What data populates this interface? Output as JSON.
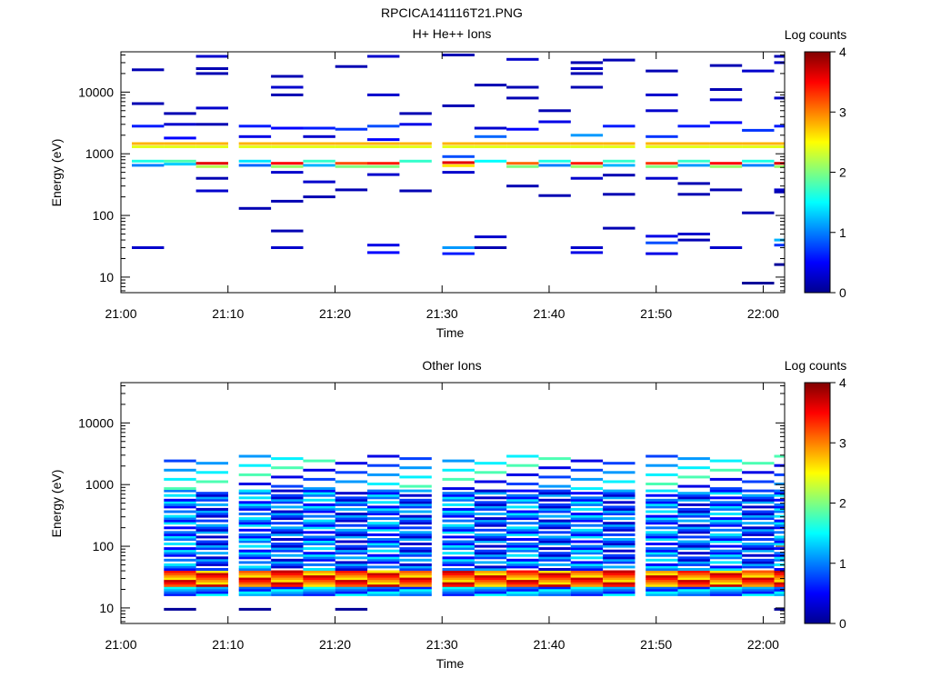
{
  "figure": {
    "title": "RPCICA141116T21.PNG"
  },
  "colors": {
    "background": "#ffffff",
    "axis": "#000000"
  },
  "chart_data": [
    {
      "type": "heatmap",
      "title": "H+ He++ Ions",
      "xlabel": "Time",
      "ylabel": "Energy (eV)",
      "y_scale": "log",
      "ylim": [
        5.6,
        45000
      ],
      "xlim": [
        "21:00",
        "22:02"
      ],
      "x_ticks": [
        "21:00",
        "21:10",
        "21:20",
        "21:30",
        "21:40",
        "21:50",
        "22:00"
      ],
      "y_ticks": [
        "10",
        "100",
        "1000",
        "10000"
      ],
      "colorbar": {
        "label": "Log counts",
        "range": [
          0,
          4
        ],
        "ticks": [
          "0",
          "1",
          "2",
          "3",
          "4"
        ],
        "colormap": "jet"
      },
      "time_bins": [
        "21:00",
        "21:03",
        "21:06",
        "21:10",
        "21:13",
        "21:16",
        "21:19",
        "21:22",
        "21:25",
        "21:29",
        "21:32",
        "21:35",
        "21:38",
        "21:41",
        "21:44",
        "21:48",
        "21:51",
        "21:54",
        "21:57",
        "22:00"
      ],
      "cells": [
        [
          1,
          1460,
          2.8
        ],
        [
          1,
          1300,
          2.4
        ],
        [
          1,
          760,
          1.8
        ],
        [
          1,
          680,
          1.3
        ],
        [
          1,
          1800,
          0.5
        ],
        [
          1,
          3000,
          0.3
        ],
        [
          1,
          4500,
          0.2
        ],
        [
          2,
          1460,
          2.8
        ],
        [
          2,
          1300,
          2.4
        ],
        [
          2,
          700,
          3.6
        ],
        [
          2,
          620,
          2.2
        ],
        [
          2,
          38000,
          0.3
        ],
        [
          2,
          24000,
          0.2
        ],
        [
          2,
          20000,
          0.2
        ],
        [
          2,
          5500,
          0.3
        ],
        [
          2,
          3000,
          0.2
        ],
        [
          2,
          400,
          0.2
        ],
        [
          2,
          250,
          0.3
        ],
        [
          3,
          1460,
          2.8
        ],
        [
          3,
          1300,
          2.4
        ],
        [
          3,
          760,
          1.4
        ],
        [
          3,
          650,
          0.9
        ],
        [
          3,
          2800,
          0.6
        ],
        [
          3,
          1900,
          0.4
        ],
        [
          3,
          130,
          0.2
        ],
        [
          4,
          1460,
          2.8
        ],
        [
          4,
          1300,
          2.4
        ],
        [
          4,
          700,
          3.5
        ],
        [
          4,
          620,
          2.1
        ],
        [
          4,
          18000,
          0.2
        ],
        [
          4,
          12000,
          0.3
        ],
        [
          4,
          9000,
          0.2
        ],
        [
          4,
          2600,
          0.5
        ],
        [
          4,
          500,
          0.3
        ],
        [
          4,
          170,
          0.2
        ],
        [
          4,
          56,
          0.2
        ],
        [
          4,
          30,
          0.3
        ],
        [
          5,
          1460,
          2.8
        ],
        [
          5,
          1300,
          2.4
        ],
        [
          5,
          760,
          1.7
        ],
        [
          5,
          650,
          1.2
        ],
        [
          5,
          2600,
          0.6
        ],
        [
          5,
          1900,
          0.3
        ],
        [
          5,
          350,
          0.3
        ],
        [
          5,
          200,
          0.2
        ],
        [
          6,
          1460,
          2.8
        ],
        [
          6,
          1300,
          2.4
        ],
        [
          6,
          700,
          3.2
        ],
        [
          6,
          620,
          2.0
        ],
        [
          6,
          26000,
          0.2
        ],
        [
          6,
          2500,
          0.7
        ],
        [
          6,
          260,
          0.2
        ],
        [
          7,
          1460,
          2.8
        ],
        [
          7,
          1300,
          2.4
        ],
        [
          7,
          700,
          3.4
        ],
        [
          7,
          620,
          2.0
        ],
        [
          7,
          38000,
          0.3
        ],
        [
          7,
          9000,
          0.3
        ],
        [
          7,
          2800,
          0.8
        ],
        [
          7,
          1700,
          0.5
        ],
        [
          7,
          460,
          0.3
        ],
        [
          7,
          33,
          0.4
        ],
        [
          7,
          25,
          0.5
        ],
        [
          8,
          1460,
          2.8
        ],
        [
          8,
          1300,
          2.4
        ],
        [
          8,
          760,
          1.7
        ],
        [
          8,
          3000,
          0.4
        ],
        [
          8,
          4500,
          0.2
        ],
        [
          8,
          250,
          0.2
        ],
        [
          9,
          1460,
          2.8
        ],
        [
          9,
          1300,
          2.4
        ],
        [
          9,
          720,
          3.6
        ],
        [
          9,
          640,
          2.6
        ],
        [
          9,
          900,
          0.8
        ],
        [
          9,
          40000,
          0.2
        ],
        [
          9,
          6000,
          0.2
        ],
        [
          9,
          500,
          0.3
        ],
        [
          9,
          30,
          1.1
        ],
        [
          9,
          24,
          0.6
        ],
        [
          10,
          1460,
          2.8
        ],
        [
          10,
          1300,
          2.4
        ],
        [
          10,
          760,
          1.5
        ],
        [
          10,
          1900,
          0.9
        ],
        [
          10,
          13000,
          0.2
        ],
        [
          10,
          2600,
          0.3
        ],
        [
          10,
          45,
          0.3
        ],
        [
          10,
          30,
          0.2
        ],
        [
          11,
          1460,
          2.8
        ],
        [
          11,
          1300,
          2.4
        ],
        [
          11,
          700,
          3.1
        ],
        [
          11,
          620,
          2.0
        ],
        [
          11,
          34000,
          0.3
        ],
        [
          11,
          12000,
          0.2
        ],
        [
          11,
          8000,
          0.2
        ],
        [
          11,
          2500,
          0.5
        ],
        [
          11,
          300,
          0.2
        ],
        [
          12,
          1460,
          2.8
        ],
        [
          12,
          1300,
          2.4
        ],
        [
          12,
          760,
          1.6
        ],
        [
          12,
          650,
          1.0
        ],
        [
          12,
          3300,
          0.4
        ],
        [
          12,
          5000,
          0.2
        ],
        [
          12,
          210,
          0.2
        ],
        [
          13,
          1460,
          2.8
        ],
        [
          13,
          1300,
          2.4
        ],
        [
          13,
          700,
          3.4
        ],
        [
          13,
          620,
          2.1
        ],
        [
          13,
          30000,
          0.2
        ],
        [
          13,
          24000,
          0.3
        ],
        [
          13,
          20000,
          0.2
        ],
        [
          13,
          12000,
          0.2
        ],
        [
          13,
          2000,
          1.1
        ],
        [
          13,
          400,
          0.3
        ],
        [
          13,
          30,
          0.3
        ],
        [
          13,
          25,
          0.4
        ],
        [
          14,
          1460,
          2.8
        ],
        [
          14,
          1300,
          2.4
        ],
        [
          14,
          760,
          1.7
        ],
        [
          14,
          650,
          1.2
        ],
        [
          14,
          33000,
          0.2
        ],
        [
          14,
          2800,
          0.6
        ],
        [
          14,
          450,
          0.2
        ],
        [
          14,
          220,
          0.2
        ],
        [
          14,
          62,
          0.2
        ],
        [
          15,
          1460,
          2.8
        ],
        [
          15,
          1300,
          2.4
        ],
        [
          15,
          700,
          3.3
        ],
        [
          15,
          620,
          2.0
        ],
        [
          15,
          22000,
          0.2
        ],
        [
          15,
          9000,
          0.3
        ],
        [
          15,
          5000,
          0.3
        ],
        [
          15,
          1900,
          0.7
        ],
        [
          15,
          400,
          0.3
        ],
        [
          15,
          46,
          0.4
        ],
        [
          15,
          36,
          0.8
        ],
        [
          15,
          24,
          0.4
        ],
        [
          16,
          1460,
          2.8
        ],
        [
          16,
          1300,
          2.4
        ],
        [
          16,
          760,
          1.7
        ],
        [
          16,
          650,
          1.1
        ],
        [
          16,
          2800,
          0.6
        ],
        [
          16,
          330,
          0.2
        ],
        [
          16,
          220,
          0.2
        ],
        [
          16,
          50,
          0.3
        ],
        [
          16,
          40,
          0.2
        ],
        [
          17,
          1460,
          2.8
        ],
        [
          17,
          1300,
          2.4
        ],
        [
          17,
          700,
          3.5
        ],
        [
          17,
          620,
          2.1
        ],
        [
          17,
          27000,
          0.2
        ],
        [
          17,
          11000,
          0.2
        ],
        [
          17,
          7500,
          0.3
        ],
        [
          17,
          3200,
          0.5
        ],
        [
          17,
          260,
          0.2
        ],
        [
          17,
          30,
          0.3
        ],
        [
          18,
          1460,
          2.8
        ],
        [
          18,
          1300,
          2.4
        ],
        [
          18,
          760,
          1.6
        ],
        [
          18,
          650,
          1.0
        ],
        [
          18,
          22000,
          0.3
        ],
        [
          18,
          2400,
          0.7
        ],
        [
          18,
          110,
          0.2
        ],
        [
          18,
          8,
          0.1
        ],
        [
          19,
          1460,
          2.8
        ],
        [
          19,
          1300,
          2.4
        ],
        [
          19,
          700,
          3.6
        ],
        [
          19,
          620,
          2.1
        ],
        [
          19,
          38000,
          0.2
        ],
        [
          19,
          30000,
          0.3
        ],
        [
          19,
          8000,
          0.3
        ],
        [
          19,
          2800,
          0.6
        ],
        [
          19,
          260,
          0.3
        ],
        [
          19,
          240,
          0.2
        ],
        [
          19,
          40,
          1.2
        ],
        [
          19,
          33,
          0.7
        ],
        [
          19,
          16,
          0.1
        ],
        [
          20,
          1460,
          2.8
        ],
        [
          20,
          1300,
          2.4
        ],
        [
          20,
          760,
          1.6
        ],
        [
          20,
          650,
          1.0
        ],
        [
          20,
          23000,
          0.2
        ],
        [
          20,
          6500,
          0.2
        ],
        [
          20,
          2800,
          0.6
        ],
        [
          20,
          30,
          0.3
        ]
      ]
    },
    {
      "type": "heatmap",
      "title": "Other Ions",
      "xlabel": "Time",
      "ylabel": "Energy (eV)",
      "y_scale": "log",
      "ylim": [
        5.6,
        45000
      ],
      "xlim": [
        "21:00",
        "22:02"
      ],
      "x_ticks": [
        "21:00",
        "21:10",
        "21:20",
        "21:30",
        "21:40",
        "21:50",
        "22:00"
      ],
      "y_ticks": [
        "10",
        "100",
        "1000",
        "10000"
      ],
      "colorbar": {
        "label": "Log counts",
        "range": [
          0,
          4
        ],
        "ticks": [
          "0",
          "1",
          "2",
          "3",
          "4"
        ],
        "colormap": "jet"
      },
      "profile_description": "bands between ~15 eV and ~3000 eV",
      "time_bins": [
        "21:00",
        "21:03",
        "21:06",
        "21:10",
        "21:13",
        "21:16",
        "21:19",
        "21:22",
        "21:25",
        "21:29",
        "21:32",
        "21:35",
        "21:38",
        "21:41",
        "21:44",
        "21:48",
        "21:51",
        "21:54",
        "21:57",
        "22:00"
      ]
    }
  ]
}
